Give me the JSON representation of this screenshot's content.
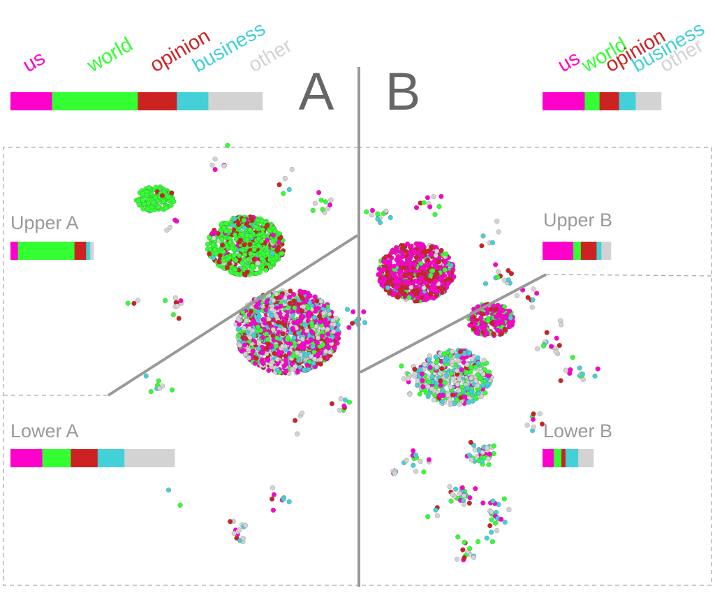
{
  "colors": {
    "us": "#ff00cc",
    "world": "#33ff33",
    "opinion": "#cc2222",
    "business": "#44d0d8",
    "other": "#d3d3d3",
    "label": "#999999",
    "divider": "#999999",
    "big_letter": "#666666"
  },
  "panels": {
    "A": {
      "letter": "A"
    },
    "B": {
      "letter": "B"
    }
  },
  "chart_data": {
    "type": "scatter",
    "categories": [
      "us",
      "world",
      "opinion",
      "business",
      "other"
    ],
    "legend_labels": [
      "us",
      "world",
      "opinion",
      "business",
      "other"
    ],
    "summary_bars": [
      {
        "id": "A",
        "label": "",
        "values": [
          0.165,
          0.34,
          0.155,
          0.125,
          0.215
        ]
      },
      {
        "id": "B",
        "label": "",
        "values": [
          0.355,
          0.125,
          0.165,
          0.14,
          0.215
        ]
      },
      {
        "id": "upper-a",
        "label": "Upper A",
        "values": [
          0.09,
          0.68,
          0.14,
          0.05,
          0.04
        ]
      },
      {
        "id": "lower-a",
        "label": "Lower A",
        "values": [
          0.19,
          0.17,
          0.16,
          0.16,
          0.3
        ]
      },
      {
        "id": "upper-b",
        "label": "Upper B",
        "values": [
          0.45,
          0.11,
          0.23,
          0.07,
          0.14
        ]
      },
      {
        "id": "lower-b",
        "label": "Lower B",
        "values": [
          0.22,
          0.15,
          0.08,
          0.25,
          0.3
        ]
      }
    ],
    "clusters": [
      {
        "name": "A world cluster",
        "mix": [
          0.02,
          0.93,
          0.02,
          0.01,
          0.02
        ]
      },
      {
        "name": "A upper cluster",
        "mix": [
          0.06,
          0.66,
          0.22,
          0.03,
          0.03
        ]
      },
      {
        "name": "A lower cluster",
        "mix": [
          0.3,
          0.12,
          0.18,
          0.15,
          0.25
        ]
      },
      {
        "name": "B upper cluster",
        "mix": [
          0.55,
          0.06,
          0.33,
          0.03,
          0.03
        ]
      },
      {
        "name": "B middle cluster",
        "mix": [
          0.62,
          0.22,
          0.12,
          0.02,
          0.02
        ]
      },
      {
        "name": "B lower cluster",
        "mix": [
          0.12,
          0.2,
          0.05,
          0.28,
          0.35
        ]
      }
    ]
  }
}
